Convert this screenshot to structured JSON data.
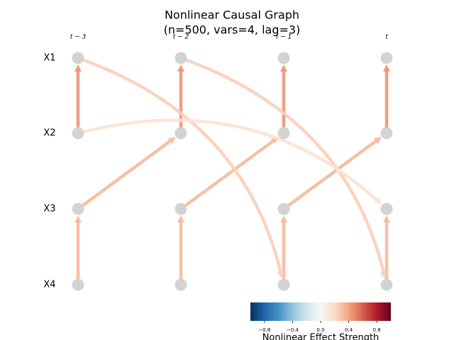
{
  "title": "Nonlinear Causal Graph",
  "subtitle": "(n=500, vars=4, lag=3)",
  "times": [
    "t − 3",
    "t − 2",
    "t − 1",
    "t"
  ],
  "variables": [
    "X1",
    "X2",
    "X3",
    "X4"
  ],
  "node_color": "#d3d3d3",
  "edges": [
    {
      "from": [
        1,
        0
      ],
      "to": [
        0,
        0
      ],
      "strength": 0.45
    },
    {
      "from": [
        1,
        1
      ],
      "to": [
        0,
        1
      ],
      "strength": 0.45
    },
    {
      "from": [
        1,
        2
      ],
      "to": [
        0,
        2
      ],
      "strength": 0.45
    },
    {
      "from": [
        1,
        3
      ],
      "to": [
        0,
        3
      ],
      "strength": 0.45
    },
    {
      "from": [
        3,
        0
      ],
      "to": [
        2,
        0
      ],
      "strength": 0.33
    },
    {
      "from": [
        3,
        1
      ],
      "to": [
        2,
        1
      ],
      "strength": 0.33
    },
    {
      "from": [
        3,
        2
      ],
      "to": [
        2,
        2
      ],
      "strength": 0.33
    },
    {
      "from": [
        3,
        3
      ],
      "to": [
        2,
        3
      ],
      "strength": 0.33
    },
    {
      "from": [
        2,
        0
      ],
      "to": [
        1,
        1
      ],
      "strength": 0.33
    },
    {
      "from": [
        2,
        1
      ],
      "to": [
        1,
        2
      ],
      "strength": 0.33
    },
    {
      "from": [
        2,
        2
      ],
      "to": [
        1,
        3
      ],
      "strength": 0.33
    },
    {
      "from": [
        0,
        0
      ],
      "to": [
        3,
        2
      ],
      "strength": 0.25
    },
    {
      "from": [
        0,
        1
      ],
      "to": [
        3,
        3
      ],
      "strength": 0.25
    },
    {
      "from": [
        1,
        0
      ],
      "to": [
        2,
        3
      ],
      "strength": 0.15
    }
  ],
  "colorbar": {
    "label": "Nonlinear Effect Strength",
    "lim": [
      -1,
      1
    ],
    "colors": [
      "#053061",
      "#2166ac",
      "#4393c3",
      "#92c5de",
      "#d1e5f0",
      "#f7f7f7",
      "#fddbc7",
      "#f4a582",
      "#d6604d",
      "#b2182b",
      "#67001f"
    ],
    "ticks": [
      {
        "value": -0.8,
        "label": "−0.8"
      },
      {
        "value": -0.4,
        "label": "−0.4"
      },
      {
        "value": 0,
        "label": "0.0"
      },
      0.4,
      0.8
    ]
  }
}
